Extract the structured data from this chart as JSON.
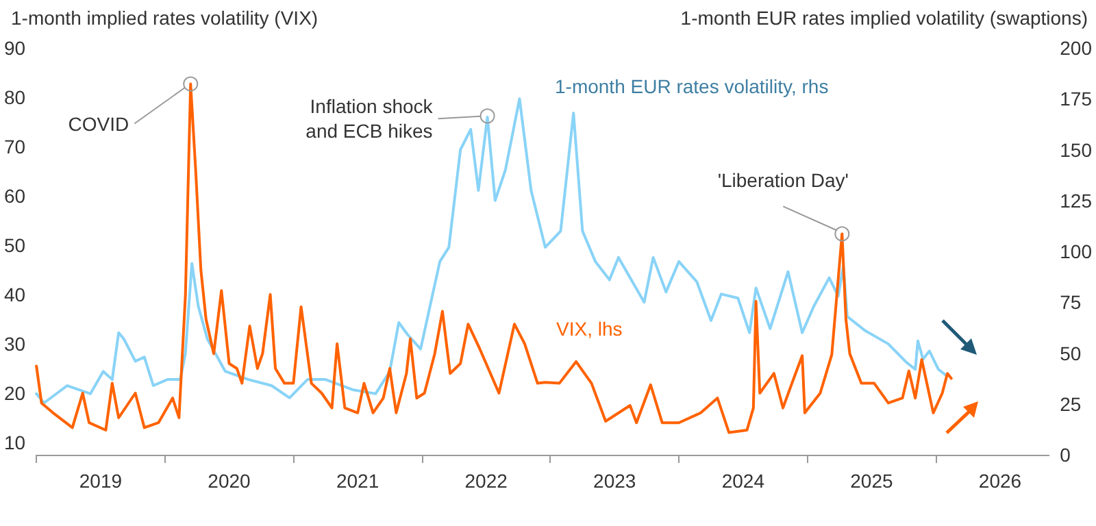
{
  "chart_data": {
    "type": "line",
    "ylabel": "1-month implied rates volatility (VIX)",
    "y2label": "1-month EUR rates implied volatility (swaptions)",
    "xlim": [
      2019,
      2026.88
    ],
    "xticks": [
      {
        "value": 2019,
        "label": null
      },
      {
        "value": 2019.5,
        "label": "2019"
      },
      {
        "value": 2020,
        "label": null
      },
      {
        "value": 2020.5,
        "label": "2020"
      },
      {
        "value": 2021,
        "label": null
      },
      {
        "value": 2021.5,
        "label": "2021"
      },
      {
        "value": 2022,
        "label": null
      },
      {
        "value": 2022.5,
        "label": "2022"
      },
      {
        "value": 2023,
        "label": null
      },
      {
        "value": 2023.5,
        "label": "2023"
      },
      {
        "value": 2024,
        "label": null
      },
      {
        "value": 2024.5,
        "label": "2024"
      },
      {
        "value": 2025,
        "label": null
      },
      {
        "value": 2025.5,
        "label": "2025"
      },
      {
        "value": 2026,
        "label": null
      },
      {
        "value": 2026.5,
        "label": "2026"
      }
    ],
    "ylim": [
      7.5,
      90
    ],
    "yticks": [
      10,
      20,
      30,
      40,
      50,
      60,
      70,
      80,
      90
    ],
    "y2lim": [
      0,
      200
    ],
    "y2ticks": [
      0,
      25,
      50,
      75,
      100,
      125,
      150,
      175,
      200
    ],
    "grid": false,
    "marker": "none",
    "line_style": "solid",
    "annotations": [
      {
        "text": "COVID",
        "x": 2020.2,
        "y": 82.7
      },
      {
        "text": "Inflation shock\nand ECB hikes",
        "x": 2022.51,
        "y": 76.2
      },
      {
        "text": "'Liberation Day'",
        "x": 2025.27,
        "y": 52.3
      }
    ],
    "series": [
      {
        "name": "1-month EUR rates volatility, rhs",
        "color": "#89d3f7",
        "axis": "y2",
        "x": [
          2019.0,
          2019.06,
          2019.24,
          2019.42,
          2019.52,
          2019.59,
          2019.64,
          2019.68,
          2019.77,
          2019.84,
          2019.91,
          2020.02,
          2020.12,
          2020.16,
          2020.21,
          2020.26,
          2020.33,
          2020.47,
          2020.65,
          2020.83,
          2020.97,
          2021.11,
          2021.25,
          2021.46,
          2021.64,
          2021.75,
          2021.82,
          2021.89,
          2021.99,
          2022.07,
          2022.14,
          2022.21,
          2022.3,
          2022.38,
          2022.44,
          2022.51,
          2022.57,
          2022.65,
          2022.76,
          2022.85,
          2022.96,
          2023.08,
          2023.18,
          2023.25,
          2023.35,
          2023.46,
          2023.53,
          2023.73,
          2023.8,
          2023.9,
          2024.0,
          2024.14,
          2024.25,
          2024.33,
          2024.46,
          2024.55,
          2024.6,
          2024.71,
          2024.85,
          2024.96,
          2025.05,
          2025.17,
          2025.24,
          2025.28,
          2025.31,
          2025.45,
          2025.63,
          2025.77,
          2025.84,
          2025.86,
          2025.9,
          2025.95,
          2026.02,
          2026.08
        ],
        "values": [
          30,
          25.5,
          34,
          30,
          41,
          37,
          60,
          57,
          46,
          48,
          34,
          37,
          37,
          50,
          94,
          73,
          57,
          41,
          37,
          34,
          28,
          37,
          37,
          32,
          30,
          41,
          65,
          59,
          52,
          75,
          95,
          102,
          150,
          160,
          130,
          166,
          125,
          140,
          175,
          130,
          102,
          110,
          168,
          110,
          95,
          86,
          97,
          75,
          97,
          80,
          95,
          85,
          66,
          79,
          77,
          60,
          82,
          62,
          90,
          60,
          73,
          87,
          78,
          93,
          68,
          61,
          54.5,
          45.5,
          42,
          56,
          47,
          51,
          42,
          39
        ]
      },
      {
        "name": "VIX, lhs",
        "color": "#ff6200",
        "x": [
          2019.0,
          2019.04,
          2019.13,
          2019.28,
          2019.36,
          2019.41,
          2019.54,
          2019.59,
          2019.64,
          2019.77,
          2019.84,
          2019.95,
          2020.06,
          2020.11,
          2020.16,
          2020.2,
          2020.24,
          2020.28,
          2020.32,
          2020.38,
          2020.44,
          2020.5,
          2020.56,
          2020.6,
          2020.66,
          2020.72,
          2020.76,
          2020.82,
          2020.86,
          2020.93,
          2021.0,
          2021.06,
          2021.14,
          2021.22,
          2021.3,
          2021.34,
          2021.4,
          2021.5,
          2021.55,
          2021.62,
          2021.7,
          2021.75,
          2021.8,
          2021.88,
          2021.91,
          2021.96,
          2022.02,
          2022.1,
          2022.16,
          2022.22,
          2022.3,
          2022.36,
          2022.45,
          2022.5,
          2022.6,
          2022.72,
          2022.8,
          2022.9,
          2022.96,
          2023.07,
          2023.2,
          2023.32,
          2023.43,
          2023.62,
          2023.67,
          2023.78,
          2023.87,
          2024.0,
          2024.17,
          2024.3,
          2024.39,
          2024.53,
          2024.58,
          2024.6,
          2024.63,
          2024.74,
          2024.81,
          2024.88,
          2024.96,
          2024.98,
          2025.1,
          2025.19,
          2025.27,
          2025.3,
          2025.33,
          2025.42,
          2025.52,
          2025.63,
          2025.74,
          2025.79,
          2025.84,
          2025.89,
          2025.98,
          2026.05,
          2026.09,
          2026.12
        ],
        "values": [
          25.5,
          18,
          16,
          13,
          20,
          14,
          12.5,
          22,
          15,
          20,
          13,
          14,
          19,
          15,
          40,
          82.7,
          65,
          45,
          35,
          28,
          40.8,
          26,
          25,
          22,
          33.6,
          25,
          28,
          40,
          25,
          22,
          22,
          37.5,
          22,
          20,
          17,
          30,
          17,
          16,
          22,
          16,
          19,
          25,
          16,
          24,
          31,
          19,
          20,
          28,
          36.6,
          24,
          26,
          34,
          29,
          26,
          20,
          34,
          30,
          22,
          22.2,
          22,
          26.4,
          22,
          14.3,
          17.5,
          14,
          21.7,
          14,
          14,
          16,
          19,
          12,
          12.5,
          17,
          38.6,
          20,
          24,
          17,
          22,
          27.6,
          16,
          20,
          27.8,
          52.3,
          35,
          28,
          22,
          22,
          18,
          19,
          24.5,
          19,
          26.8,
          16,
          20,
          24,
          23
        ]
      }
    ]
  }
}
